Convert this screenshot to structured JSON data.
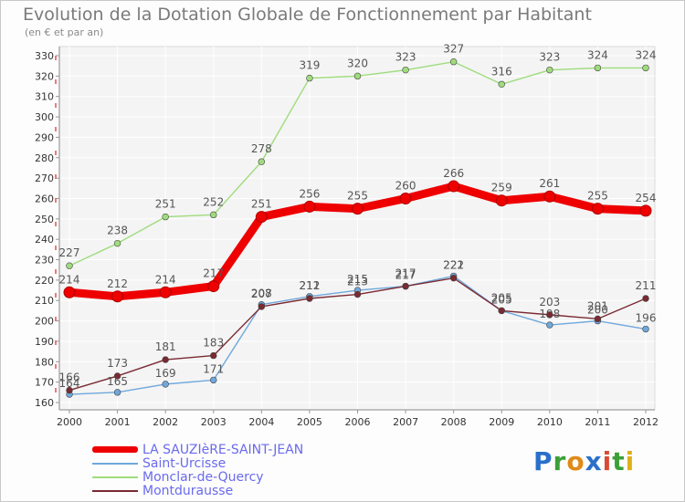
{
  "chart_data": {
    "type": "line",
    "title": "Evolution de la Dotation Globale de Fonctionnement par Habitant",
    "subtitle": "(en € et par an)",
    "xlabel": "",
    "ylabel": "",
    "ylim": [
      160,
      330
    ],
    "y_ticks": [
      160,
      170,
      180,
      190,
      200,
      210,
      220,
      230,
      240,
      250,
      260,
      270,
      280,
      290,
      300,
      310,
      320,
      330
    ],
    "categories": [
      "2000",
      "2001",
      "2002",
      "2003",
      "2004",
      "2005",
      "2006",
      "2007",
      "2008",
      "2009",
      "2010",
      "2011",
      "2012"
    ],
    "grid": true,
    "legend_position": "bottom-left",
    "series": [
      {
        "name": "LA SAUZIèRE-SAINT-JEAN",
        "color": "#ee0000",
        "emphasis": true,
        "values": [
          214,
          212,
          214,
          217,
          251,
          256,
          255,
          260,
          266,
          259,
          261,
          255,
          254
        ]
      },
      {
        "name": "Saint-Urcisse",
        "color": "#6fa8dc",
        "values": [
          164,
          165,
          169,
          171,
          208,
          212,
          215,
          217,
          222,
          205,
          198,
          200,
          196
        ]
      },
      {
        "name": "Monclar-de-Quercy",
        "color": "#9fdc7c",
        "values": [
          227,
          238,
          251,
          252,
          278,
          319,
          320,
          323,
          327,
          316,
          323,
          324,
          324
        ]
      },
      {
        "name": "Montdurausse",
        "color": "#7a2a32",
        "values": [
          166,
          173,
          181,
          183,
          207,
          211,
          213,
          217,
          221,
          205,
          203,
          201,
          211
        ]
      }
    ]
  },
  "legend": {
    "items": [
      {
        "label": "LA SAUZIèRE-SAINT-JEAN",
        "color": "#ee0000"
      },
      {
        "label": "Saint-Urcisse",
        "color": "#6fa8dc"
      },
      {
        "label": "Monclar-de-Quercy",
        "color": "#9fdc7c"
      },
      {
        "label": "Montdurausse",
        "color": "#7a2a32"
      }
    ]
  },
  "logo": {
    "text": "Proxiti"
  }
}
